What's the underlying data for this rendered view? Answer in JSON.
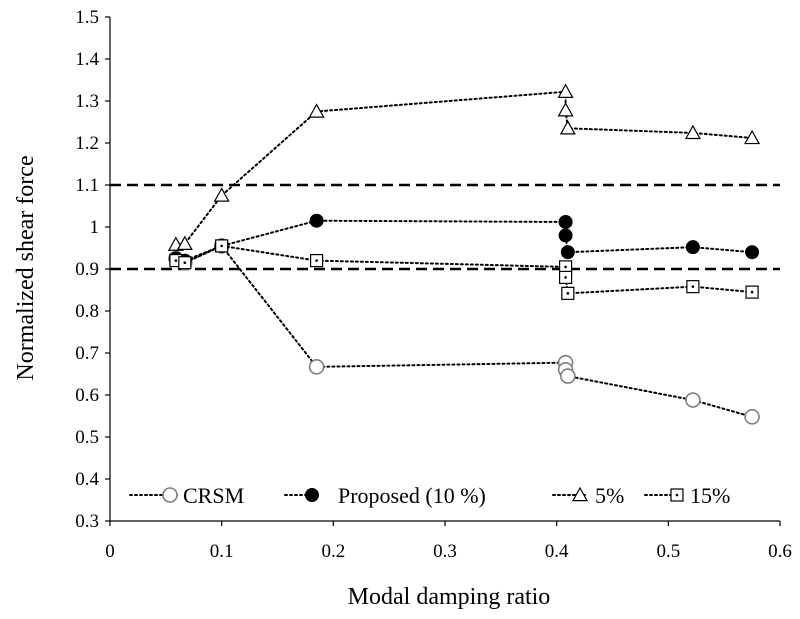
{
  "chart_data": {
    "type": "line",
    "xlabel": "Modal damping ratio",
    "ylabel": "Normalized shear force",
    "xlim": [
      0,
      0.6
    ],
    "ylim": [
      0.3,
      1.5
    ],
    "x_ticks": [
      0,
      0.1,
      0.2,
      0.3,
      0.4,
      0.5,
      0.6
    ],
    "x_tick_labels": [
      "0",
      "0.1",
      "0.2",
      "0.3",
      "0.4",
      "0.5",
      "0.6"
    ],
    "y_ticks": [
      0.3,
      0.4,
      0.5,
      0.6,
      0.7,
      0.8,
      0.9,
      1.0,
      1.1,
      1.2,
      1.3,
      1.4,
      1.5
    ],
    "y_tick_labels": [
      "0.3",
      "0.4",
      "0.5",
      "0.6",
      "0.7",
      "0.8",
      "0.9",
      "1",
      "1.1",
      "1.2",
      "1.3",
      "1.4",
      "1.5"
    ],
    "grid": false,
    "legend_position": "bottom",
    "reference_lines": [
      {
        "y": 1.1,
        "style": "dashed"
      },
      {
        "y": 0.9,
        "style": "dashed"
      }
    ],
    "series": [
      {
        "name": "CRSM",
        "marker": "open-circle",
        "color": "#7f7f7f",
        "x": [
          0.059,
          0.067,
          0.1,
          0.185,
          0.408,
          0.408,
          0.41,
          0.522,
          0.575
        ],
        "y": [
          0.925,
          0.915,
          0.955,
          0.667,
          0.677,
          0.66,
          0.645,
          0.588,
          0.548
        ]
      },
      {
        "name": "Proposed (10 %)",
        "marker": "filled-circle",
        "color": "#000000",
        "x": [
          0.059,
          0.067,
          0.1,
          0.185,
          0.408,
          0.408,
          0.41,
          0.522,
          0.575
        ],
        "y": [
          0.925,
          0.92,
          0.955,
          1.015,
          1.012,
          0.98,
          0.94,
          0.952,
          0.94
        ]
      },
      {
        "name": "5%",
        "marker": "open-triangle",
        "color": "#000000",
        "x": [
          0.059,
          0.067,
          0.1,
          0.185,
          0.408,
          0.408,
          0.41,
          0.522,
          0.575
        ],
        "y": [
          0.958,
          0.96,
          1.075,
          1.275,
          1.322,
          1.278,
          1.235,
          1.224,
          1.212
        ]
      },
      {
        "name": "15%",
        "marker": "open-square",
        "color": "#000000",
        "x": [
          0.059,
          0.067,
          0.1,
          0.185,
          0.408,
          0.408,
          0.41,
          0.522,
          0.575
        ],
        "y": [
          0.92,
          0.915,
          0.955,
          0.92,
          0.905,
          0.88,
          0.842,
          0.858,
          0.845
        ]
      }
    ]
  },
  "colors": {
    "axis": "#000000",
    "crsm": "#7f7f7f",
    "black": "#000000"
  }
}
